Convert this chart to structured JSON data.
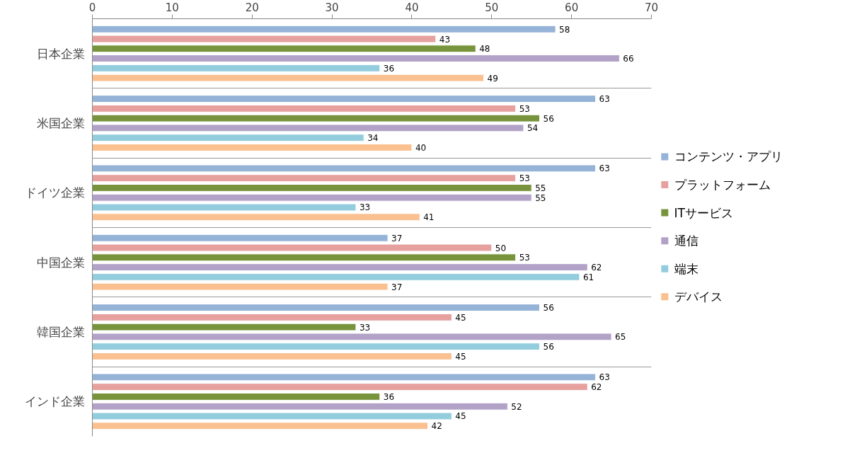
{
  "chart_data": {
    "type": "bar",
    "orientation": "horizontal",
    "categories": [
      "日本企業",
      "米国企業",
      "ドイツ企業",
      "中国企業",
      "韓国企業",
      "インド企業"
    ],
    "series": [
      {
        "name": "コンテンツ・アプリ",
        "color": "#95b3d7",
        "values": [
          58,
          63,
          63,
          37,
          56,
          63
        ]
      },
      {
        "name": "プラットフォーム",
        "color": "#e6a09e",
        "values": [
          43,
          53,
          53,
          50,
          45,
          62
        ]
      },
      {
        "name": "ITサービス",
        "color": "#77933c",
        "values": [
          48,
          56,
          55,
          53,
          33,
          36
        ]
      },
      {
        "name": "通信",
        "color": "#b3a2c7",
        "values": [
          66,
          54,
          55,
          62,
          65,
          52
        ]
      },
      {
        "name": "端末",
        "color": "#93cddd",
        "values": [
          36,
          34,
          33,
          61,
          56,
          45
        ]
      },
      {
        "name": "デバイス",
        "color": "#fac090",
        "values": [
          49,
          40,
          41,
          37,
          45,
          42
        ]
      }
    ],
    "xlim": [
      0,
      70
    ],
    "xticks": [
      0,
      10,
      20,
      30,
      40,
      50,
      60,
      70
    ],
    "data_labels": true,
    "legend": "right",
    "grid": "y"
  }
}
